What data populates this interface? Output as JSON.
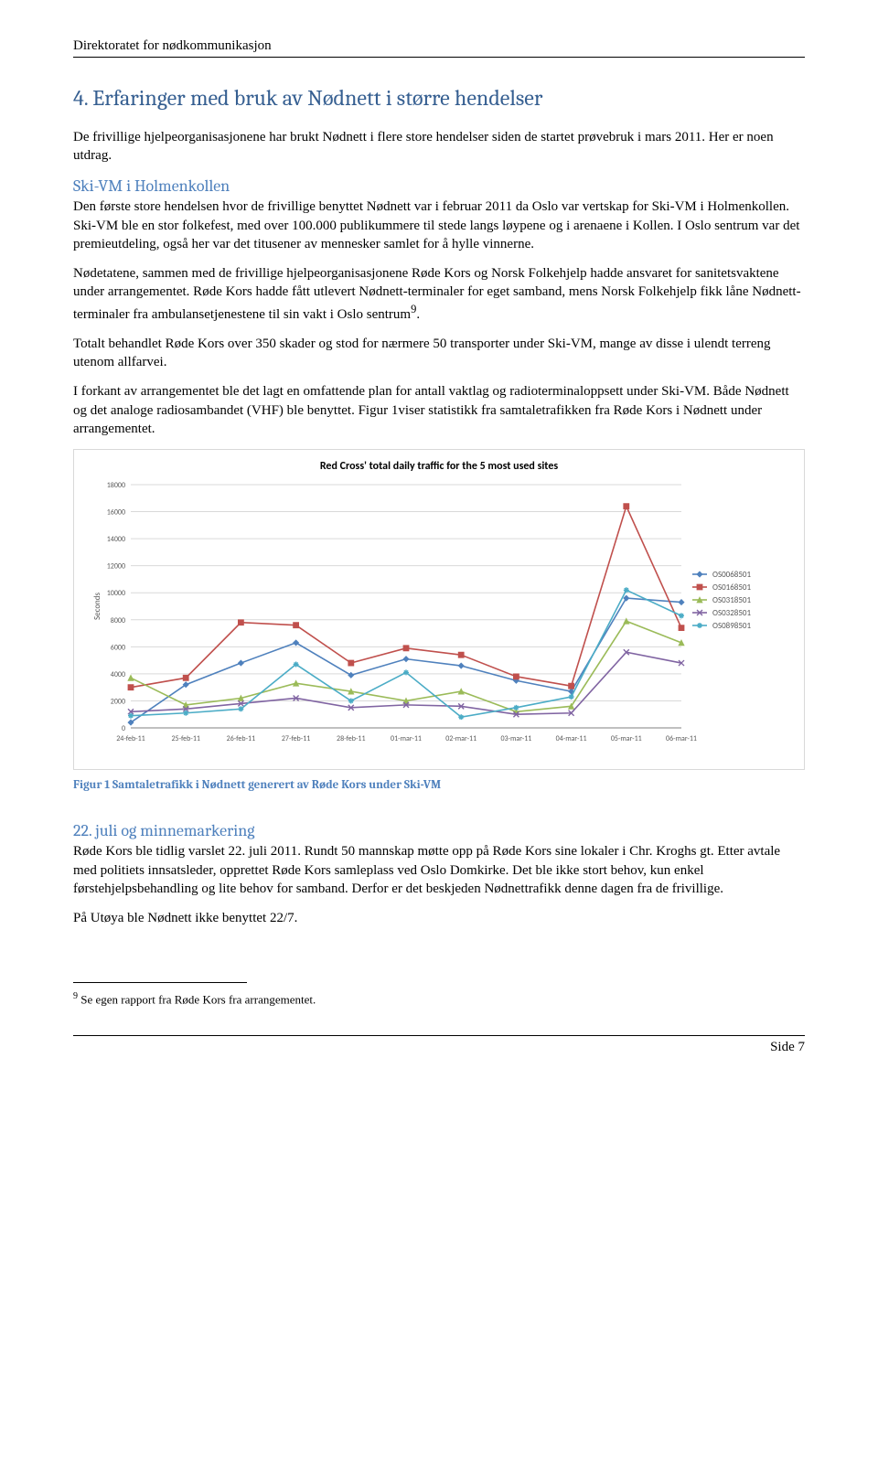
{
  "header": {
    "org": "Direktoratet for nødkommunikasjon"
  },
  "section4": {
    "title": "4. Erfaringer med bruk av Nødnett i større hendelser",
    "intro": "De frivillige hjelpeorganisasjonene har brukt Nødnett i flere store hendelser siden de startet prøvebruk i mars 2011. Her er noen utdrag."
  },
  "skivm": {
    "heading": "Ski-VM i Holmenkollen",
    "p1": "Den første store hendelsen hvor de frivillige benyttet Nødnett var i februar 2011 da Oslo var vertskap for Ski-VM i Holmenkollen. Ski-VM ble en stor folkefest, med over 100.000 publikummere til stede langs løypene og i arenaene i Kollen. I Oslo sentrum var det premieutdeling, også her var det titusener av mennesker samlet for å hylle vinnerne.",
    "p2": "Nødetatene, sammen med de frivillige hjelpeorganisasjonene Røde Kors og Norsk Folkehjelp hadde ansvaret for sanitetsvaktene under arrangementet. Røde Kors hadde fått utlevert Nødnett-terminaler for eget samband, mens Norsk Folkehjelp fikk låne Nødnett-terminaler fra ambulansetjenestene til sin vakt i Oslo sentrum",
    "p2_after": ".",
    "p3": "Totalt behandlet Røde Kors over 350 skader og stod for nærmere 50 transporter under Ski-VM, mange av disse i ulendt terreng utenom allfarvei.",
    "p4": "I forkant av arrangementet ble det lagt en omfattende plan for antall vaktlag og radioterminaloppsett under Ski-VM. Både Nødnett og det analoge radiosambandet (VHF) ble benyttet. Figur 1viser statistikk fra samtaletrafikken fra Røde Kors i Nødnett under arrangementet."
  },
  "chart": {
    "title": "Red Cross' total daily traffic for the 5 most used sites",
    "ylabel": "Seconds",
    "x_labels": [
      "24-feb-11",
      "25-feb-11",
      "26-feb-11",
      "27-feb-11",
      "28-feb-11",
      "01-mar-11",
      "02-mar-11",
      "03-mar-11",
      "04-mar-11",
      "05-mar-11",
      "06-mar-11"
    ],
    "ylim": [
      0,
      18000
    ],
    "ytick_step": 2000,
    "grid_color": "#d9d9d9",
    "background_color": "#ffffff",
    "axis_color": "#808080",
    "tick_font_size": 8,
    "label_font_size": 9,
    "line_width": 1.6,
    "marker_size": 3,
    "series": [
      {
        "name": "OS0068501",
        "color": "#4f81bd",
        "marker": "diamond",
        "values": [
          400,
          3200,
          4800,
          6300,
          3900,
          5100,
          4600,
          3500,
          2700,
          9600,
          9300
        ]
      },
      {
        "name": "OS0168501",
        "color": "#c0504d",
        "marker": "square",
        "values": [
          3000,
          3700,
          7800,
          7600,
          4800,
          5900,
          5400,
          3800,
          3100,
          16400,
          7400
        ]
      },
      {
        "name": "OS0318501",
        "color": "#9bbb59",
        "marker": "triangle",
        "values": [
          3700,
          1700,
          2200,
          3300,
          2700,
          2000,
          2700,
          1200,
          1600,
          7900,
          6300
        ]
      },
      {
        "name": "OS0328501",
        "color": "#8064a2",
        "marker": "cross",
        "values": [
          1200,
          1400,
          1800,
          2200,
          1500,
          1700,
          1600,
          1000,
          1100,
          5600,
          4800
        ]
      },
      {
        "name": "OS0898501",
        "color": "#4bacc6",
        "marker": "star",
        "values": [
          900,
          1100,
          1400,
          4700,
          2000,
          4100,
          800,
          1500,
          2300,
          10200,
          8300
        ]
      }
    ],
    "caption": "Figur 1 Samtaletrafikk i Nødnett generert av Røde Kors under Ski-VM"
  },
  "juli": {
    "heading": "22. juli og minnemarkering",
    "p1": "Røde Kors ble tidlig varslet 22. juli 2011. Rundt 50 mannskap møtte opp på Røde Kors sine lokaler i Chr. Kroghs gt. Etter avtale med politiets innsatsleder, opprettet Røde Kors samleplass ved Oslo Domkirke. Det ble ikke stort behov, kun enkel førstehjelpsbehandling og lite behov for samband. Derfor er det beskjeden Nødnettrafikk denne dagen fra de frivillige.",
    "p2": "På Utøya ble Nødnett ikke benyttet 22/7."
  },
  "footnote": {
    "marker": "9",
    "text": " Se egen rapport fra Røde Kors fra arrangementet."
  },
  "footer": {
    "page": "Side 7"
  }
}
